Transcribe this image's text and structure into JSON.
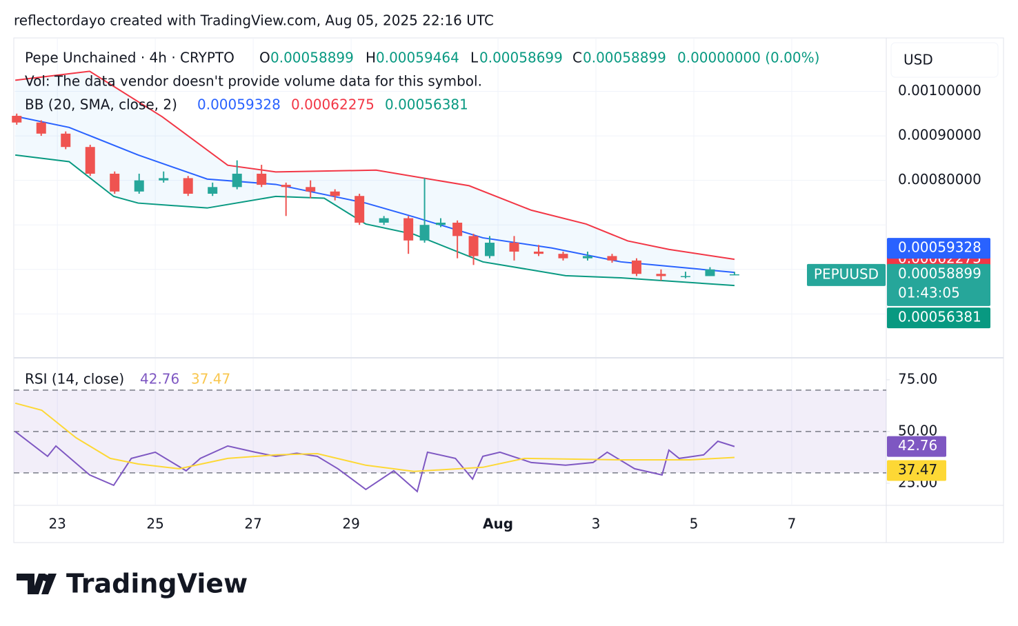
{
  "header": {
    "credit": "reflectordayo created with TradingView.com, Aug 05, 2025 22:16 UTC"
  },
  "footer": {
    "logo": "TradingView"
  },
  "chart_data": {
    "type": "candlestick",
    "title": "Pepe Unchained · 4h · CRYPTO",
    "ohlc_labels": [
      "O",
      "H",
      "L",
      "C"
    ],
    "ohlc": [
      0.00058899,
      0.00059464,
      0.00058699,
      0.00058899
    ],
    "change": "0.00000000 (0.00%)",
    "volume_note": "Vol: The data vendor doesn't provide volume data for this symbol.",
    "currency": "USD",
    "symbol": "PEPUUSD",
    "countdown": "01:43:05",
    "xlim": [
      22.11,
      39.93
    ],
    "xticks": [
      23,
      25,
      27,
      29,
      {
        "value": 32,
        "label": "Aug"
      },
      {
        "value": 34,
        "label": "3"
      },
      {
        "value": 36,
        "label": "5"
      },
      {
        "value": 38,
        "label": "7"
      }
    ],
    "ylim": [
      0.000403,
      0.00112
    ],
    "yticks": [
      {
        "value": 0.001,
        "label": "0.00100000"
      },
      {
        "value": 0.0009,
        "label": "0.00090000"
      },
      {
        "value": 0.0008,
        "label": "0.00080000"
      },
      {
        "value": 0.0007,
        "label": null
      },
      {
        "value": 0.0006,
        "label": null
      },
      {
        "value": 0.0005,
        "label": null
      }
    ],
    "grid": true,
    "up_color": "#26a69a",
    "down_color": "#ef5350",
    "candles": [
      {
        "t": 22.17,
        "o": 0.000945,
        "h": 0.00095,
        "l": 0.000925,
        "c": 0.00093
      },
      {
        "t": 22.67,
        "o": 0.00093,
        "h": 0.000935,
        "l": 0.0009,
        "c": 0.000905
      },
      {
        "t": 23.17,
        "o": 0.000905,
        "h": 0.00091,
        "l": 0.00087,
        "c": 0.000875
      },
      {
        "t": 23.67,
        "o": 0.000875,
        "h": 0.00088,
        "l": 0.00081,
        "c": 0.000815
      },
      {
        "t": 24.17,
        "o": 0.000815,
        "h": 0.00082,
        "l": 0.00077,
        "c": 0.000775
      },
      {
        "t": 24.67,
        "o": 0.000775,
        "h": 0.000815,
        "l": 0.00077,
        "c": 0.0008
      },
      {
        "t": 25.17,
        "o": 0.0008,
        "h": 0.00082,
        "l": 0.000795,
        "c": 0.000805
      },
      {
        "t": 25.67,
        "o": 0.000805,
        "h": 0.00081,
        "l": 0.000765,
        "c": 0.00077
      },
      {
        "t": 26.17,
        "o": 0.00077,
        "h": 0.000795,
        "l": 0.000765,
        "c": 0.000785
      },
      {
        "t": 26.67,
        "o": 0.000785,
        "h": 0.000845,
        "l": 0.00078,
        "c": 0.000815
      },
      {
        "t": 27.17,
        "o": 0.000815,
        "h": 0.000835,
        "l": 0.000785,
        "c": 0.00079
      },
      {
        "t": 27.67,
        "o": 0.00079,
        "h": 0.000795,
        "l": 0.00072,
        "c": 0.000785
      },
      {
        "t": 28.17,
        "o": 0.000785,
        "h": 0.0008,
        "l": 0.00076,
        "c": 0.000775
      },
      {
        "t": 28.67,
        "o": 0.000775,
        "h": 0.00078,
        "l": 0.000755,
        "c": 0.000765
      },
      {
        "t": 29.17,
        "o": 0.000765,
        "h": 0.00077,
        "l": 0.0007,
        "c": 0.000705
      },
      {
        "t": 29.67,
        "o": 0.000705,
        "h": 0.00072,
        "l": 0.0007,
        "c": 0.000715
      },
      {
        "t": 30.17,
        "o": 0.000715,
        "h": 0.00072,
        "l": 0.000635,
        "c": 0.000665
      },
      {
        "t": 30.5,
        "o": 0.000665,
        "h": 0.000805,
        "l": 0.00066,
        "c": 0.0007
      },
      {
        "t": 30.83,
        "o": 0.0007,
        "h": 0.000715,
        "l": 0.000695,
        "c": 0.000705
      },
      {
        "t": 31.17,
        "o": 0.000705,
        "h": 0.00071,
        "l": 0.000625,
        "c": 0.000675
      },
      {
        "t": 31.5,
        "o": 0.000675,
        "h": 0.00068,
        "l": 0.00061,
        "c": 0.00063
      },
      {
        "t": 31.83,
        "o": 0.00063,
        "h": 0.000675,
        "l": 0.000625,
        "c": 0.00066
      },
      {
        "t": 32.33,
        "o": 0.00066,
        "h": 0.000675,
        "l": 0.00062,
        "c": 0.00064
      },
      {
        "t": 32.83,
        "o": 0.00064,
        "h": 0.000655,
        "l": 0.00063,
        "c": 0.000635
      },
      {
        "t": 33.33,
        "o": 0.000635,
        "h": 0.00064,
        "l": 0.00062,
        "c": 0.000625
      },
      {
        "t": 33.83,
        "o": 0.000625,
        "h": 0.00064,
        "l": 0.00062,
        "c": 0.00063
      },
      {
        "t": 34.33,
        "o": 0.00063,
        "h": 0.000635,
        "l": 0.000615,
        "c": 0.00062
      },
      {
        "t": 34.83,
        "o": 0.00062,
        "h": 0.000625,
        "l": 0.000585,
        "c": 0.00059
      },
      {
        "t": 35.33,
        "o": 0.00059,
        "h": 0.0006,
        "l": 0.000575,
        "c": 0.000585
      },
      {
        "t": 35.83,
        "o": 0.000585,
        "h": 0.000595,
        "l": 0.00058,
        "c": 0.000585
      },
      {
        "t": 36.33,
        "o": 0.000585,
        "h": 0.000605,
        "l": 0.000585,
        "c": 0.0006
      },
      {
        "t": 36.83,
        "o": 0.00058899,
        "h": 0.00059464,
        "l": 0.00058699,
        "c": 0.00058899
      }
    ],
    "bb": {
      "name": "BB (20, SMA, close, 2)",
      "series": [
        {
          "name": "basis",
          "color": "#2962ff",
          "x": [
            22.14,
            23.24,
            24.65,
            26.06,
            27.46,
            29.3,
            30.28,
            31.69,
            33.1,
            34.51,
            36.83
          ],
          "values": [
            0.000944,
            0.000919,
            0.000857,
            0.000803,
            0.000791,
            0.000749,
            0.000718,
            0.000671,
            0.000648,
            0.000617,
            0.00059328
          ]
        },
        {
          "name": "upper",
          "color": "#f23645",
          "x": [
            22.14,
            23.66,
            25.14,
            26.48,
            27.46,
            29.51,
            31.41,
            32.68,
            33.8,
            34.65,
            35.49,
            36.83
          ],
          "values": [
            0.001025,
            0.001045,
            0.000943,
            0.000834,
            0.000819,
            0.000823,
            0.000788,
            0.000733,
            0.000702,
            0.000664,
            0.000645,
            0.00062275
          ]
        },
        {
          "name": "lower",
          "color": "#089981",
          "x": [
            22.14,
            23.24,
            24.15,
            24.65,
            26.06,
            27.46,
            28.45,
            29.3,
            30.28,
            31.69,
            33.38,
            34.51,
            36.83
          ],
          "values": [
            0.000857,
            0.000842,
            0.000764,
            0.000749,
            0.000738,
            0.000764,
            0.00076,
            0.000702,
            0.000679,
            0.000617,
            0.000586,
            0.000581,
            0.00056381
          ]
        }
      ]
    },
    "rsi": {
      "name": "RSI (14, close)",
      "ylim": [
        14.3,
        85.3
      ],
      "yticks": [
        {
          "value": 75,
          "label": "75.00"
        },
        {
          "value": 50,
          "label": "50.00"
        },
        {
          "value": 25,
          "label": "25.00"
        }
      ],
      "bands": [
        70,
        50,
        30
      ],
      "series": [
        {
          "name": "RSI",
          "color": "#7e57c2",
          "x": [
            22.14,
            22.8,
            22.97,
            23.66,
            24.15,
            24.51,
            25,
            25.63,
            25.92,
            26.48,
            27.04,
            27.46,
            27.89,
            28.31,
            28.73,
            29.3,
            29.87,
            30.35,
            30.56,
            31.13,
            31.48,
            31.69,
            32.04,
            32.68,
            33.38,
            33.94,
            34.23,
            34.79,
            35.35,
            35.49,
            35.7,
            36.2,
            36.49,
            36.83
          ],
          "values": [
            50,
            38,
            43,
            29,
            24,
            37,
            40,
            31,
            37,
            43,
            40,
            38,
            39.5,
            38,
            32,
            22,
            31,
            21,
            40,
            37,
            27,
            38,
            40,
            35,
            33.7,
            35,
            40,
            32,
            29,
            41,
            37,
            38.7,
            45.3,
            42.76
          ]
        },
        {
          "name": "RSI-based MA",
          "color": "#fdd835",
          "x": [
            22.14,
            22.68,
            23.38,
            24.08,
            24.65,
            25.49,
            26.48,
            27.46,
            28.31,
            29.3,
            30.28,
            31.69,
            32.54,
            34.51,
            35.92,
            36.83
          ],
          "values": [
            63.7,
            60.3,
            47,
            37,
            34.3,
            32,
            37,
            38.7,
            39.3,
            33.7,
            30.7,
            32.7,
            37,
            36.3,
            36.3,
            37.47
          ]
        }
      ]
    }
  }
}
